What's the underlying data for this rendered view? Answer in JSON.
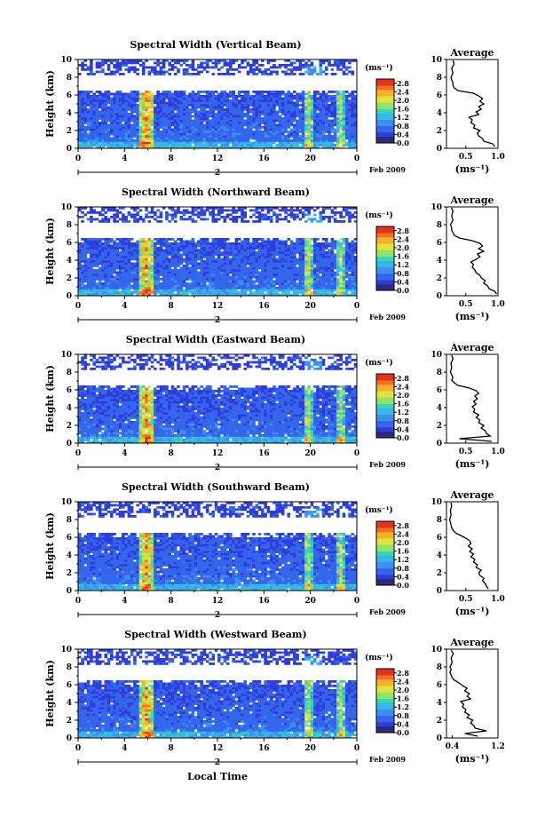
{
  "common": {
    "height_label": "Height (km)",
    "x_ticks": [
      "0",
      "4",
      "8",
      "12",
      "16",
      "20",
      "0"
    ],
    "date_tick": "2",
    "date_suffix": "Feb 2009",
    "colorbar_unit": "(ms⁻¹)",
    "colorbar_ticks": [
      "0.0",
      "0.4",
      "0.8",
      "1.2",
      "1.6",
      "2.0",
      "2.4",
      "2.8"
    ],
    "avg_title": "Average",
    "avg_unit": "(ms⁻¹)",
    "bottom_label": "Local Time",
    "colors": {
      "colormap": [
        "#2a2a7a",
        "#2e3cdb",
        "#3466ec",
        "#3d8ff0",
        "#35b7e8",
        "#3ad7b4",
        "#8fe46a",
        "#e0e43a",
        "#f6b02a",
        "#f07020",
        "#e5321a"
      ]
    }
  },
  "chart_data": [
    {
      "type": "heatmap",
      "title": "Spectral Width (Vertical Beam)",
      "xlabel": "",
      "ylabel": "Height (km)",
      "x_range_hours": [
        0,
        24
      ],
      "ylim_km": [
        0,
        10
      ],
      "colorbar_range": [
        0.0,
        3.0
      ],
      "avg_profile": {
        "title": "Average",
        "xlim": [
          0.2,
          1.0
        ],
        "x_ticks": [
          "0.5",
          "1.0"
        ],
        "xlabel": "(ms⁻¹)",
        "ylim_km": [
          0,
          10
        ],
        "heights_km": [
          0.2,
          0.5,
          0.8,
          1.1,
          1.4,
          1.7,
          2.0,
          2.3,
          2.6,
          2.9,
          3.2,
          3.5,
          3.8,
          4.1,
          4.4,
          4.7,
          5.0,
          5.3,
          5.6,
          5.9,
          6.2,
          6.5,
          6.8,
          7.1,
          7.4,
          7.7,
          8.0,
          8.5,
          9.0,
          9.5,
          9.9
        ],
        "values": [
          0.95,
          0.92,
          0.78,
          0.76,
          0.7,
          0.68,
          0.72,
          0.62,
          0.64,
          0.58,
          0.6,
          0.55,
          0.7,
          0.66,
          0.74,
          0.7,
          0.78,
          0.72,
          0.76,
          0.7,
          0.62,
          0.38,
          0.32,
          0.3,
          0.3,
          0.28,
          0.27,
          0.3,
          0.28,
          0.32,
          0.3
        ]
      }
    },
    {
      "type": "heatmap",
      "title": "Spectral Width (Northward Beam)",
      "xlabel": "",
      "ylabel": "Height (km)",
      "x_range_hours": [
        0,
        24
      ],
      "ylim_km": [
        0,
        10
      ],
      "colorbar_range": [
        0.0,
        3.0
      ],
      "avg_profile": {
        "title": "Average",
        "xlim": [
          0.2,
          1.0
        ],
        "x_ticks": [
          "0.5",
          "1.0"
        ],
        "xlabel": "(ms⁻¹)",
        "ylim_km": [
          0,
          10
        ],
        "heights_km": [
          0.2,
          0.5,
          0.8,
          1.1,
          1.4,
          1.7,
          2.0,
          2.3,
          2.6,
          2.9,
          3.2,
          3.5,
          3.8,
          4.1,
          4.4,
          4.7,
          5.0,
          5.3,
          5.6,
          5.9,
          6.2,
          6.5,
          6.8,
          7.1,
          7.4,
          7.7,
          8.0,
          8.5,
          9.0,
          9.5,
          9.9
        ],
        "values": [
          0.98,
          0.95,
          0.86,
          0.84,
          0.78,
          0.8,
          0.74,
          0.72,
          0.66,
          0.64,
          0.6,
          0.62,
          0.58,
          0.66,
          0.72,
          0.68,
          0.78,
          0.7,
          0.76,
          0.72,
          0.6,
          0.4,
          0.32,
          0.3,
          0.28,
          0.28,
          0.26,
          0.3,
          0.28,
          0.3,
          0.28
        ]
      }
    },
    {
      "type": "heatmap",
      "title": "Spectral Width (Eastward Beam)",
      "xlabel": "",
      "ylabel": "Height (km)",
      "x_range_hours": [
        0,
        24
      ],
      "ylim_km": [
        0,
        10
      ],
      "colorbar_range": [
        0.0,
        3.0
      ],
      "avg_profile": {
        "title": "Average",
        "xlim": [
          0.2,
          1.0
        ],
        "x_ticks": [
          "0.5",
          "1.0"
        ],
        "xlabel": "(ms⁻¹)",
        "ylim_km": [
          0,
          10
        ],
        "heights_km": [
          0.2,
          0.5,
          0.8,
          1.1,
          1.4,
          1.7,
          2.0,
          2.3,
          2.6,
          2.9,
          3.2,
          3.5,
          3.8,
          4.1,
          4.4,
          4.7,
          5.0,
          5.3,
          5.6,
          5.9,
          6.2,
          6.5,
          6.8,
          7.1,
          7.4,
          7.7,
          8.0,
          8.5,
          9.0,
          9.5,
          9.9
        ],
        "values": [
          0.9,
          0.4,
          0.88,
          0.82,
          0.8,
          0.74,
          0.78,
          0.7,
          0.72,
          0.66,
          0.7,
          0.62,
          0.64,
          0.6,
          0.66,
          0.62,
          0.68,
          0.64,
          0.7,
          0.66,
          0.56,
          0.38,
          0.32,
          0.28,
          0.3,
          0.28,
          0.26,
          0.28,
          0.27,
          0.3,
          0.28
        ]
      }
    },
    {
      "type": "heatmap",
      "title": "Spectral Width (Southward Beam)",
      "xlabel": "",
      "ylabel": "Height (km)",
      "x_range_hours": [
        0,
        24
      ],
      "ylim_km": [
        0,
        10
      ],
      "colorbar_range": [
        0.0,
        3.0
      ],
      "avg_profile": {
        "title": "Average",
        "xlim": [
          0.2,
          1.0
        ],
        "x_ticks": [
          "0.5",
          "1.0"
        ],
        "xlabel": "(ms⁻¹)",
        "ylim_km": [
          0,
          10
        ],
        "heights_km": [
          0.2,
          0.5,
          0.8,
          1.1,
          1.4,
          1.7,
          2.0,
          2.3,
          2.6,
          2.9,
          3.2,
          3.5,
          3.8,
          4.1,
          4.4,
          4.7,
          5.0,
          5.3,
          5.6,
          5.9,
          6.2,
          6.5,
          6.8,
          7.1,
          7.4,
          7.7,
          8.0,
          8.5,
          9.0,
          9.5,
          9.9
        ],
        "values": [
          0.85,
          0.82,
          0.8,
          0.76,
          0.78,
          0.72,
          0.7,
          0.74,
          0.66,
          0.68,
          0.62,
          0.64,
          0.58,
          0.62,
          0.56,
          0.6,
          0.54,
          0.58,
          0.56,
          0.5,
          0.42,
          0.34,
          0.3,
          0.28,
          0.27,
          0.26,
          0.25,
          0.27,
          0.26,
          0.28,
          0.27
        ]
      }
    },
    {
      "type": "heatmap",
      "title": "Spectral Width (Westward Beam)",
      "xlabel": "Local Time",
      "ylabel": "Height (km)",
      "x_range_hours": [
        0,
        24
      ],
      "ylim_km": [
        0,
        10
      ],
      "colorbar_range": [
        0.0,
        3.0
      ],
      "avg_profile": {
        "title": "Average",
        "xlim": [
          0.3,
          1.2
        ],
        "x_ticks": [
          "0.4",
          "1.2"
        ],
        "xlabel": "(ms⁻¹)",
        "ylim_km": [
          0,
          10
        ],
        "heights_km": [
          0.2,
          0.5,
          0.8,
          1.1,
          1.4,
          1.7,
          2.0,
          2.3,
          2.6,
          2.9,
          3.2,
          3.5,
          3.8,
          4.1,
          4.4,
          4.7,
          5.0,
          5.3,
          5.6,
          5.9,
          6.2,
          6.5,
          6.8,
          7.1,
          7.4,
          7.7,
          8.0,
          8.5,
          9.0,
          9.5,
          9.9
        ],
        "values": [
          0.85,
          0.62,
          1.0,
          0.8,
          0.78,
          0.72,
          0.76,
          0.66,
          0.7,
          0.62,
          0.64,
          0.58,
          0.6,
          0.55,
          0.72,
          0.66,
          0.7,
          0.62,
          0.66,
          0.58,
          0.52,
          0.44,
          0.4,
          0.38,
          0.36,
          0.38,
          0.36,
          0.4,
          0.38,
          0.42,
          0.38
        ]
      }
    }
  ]
}
